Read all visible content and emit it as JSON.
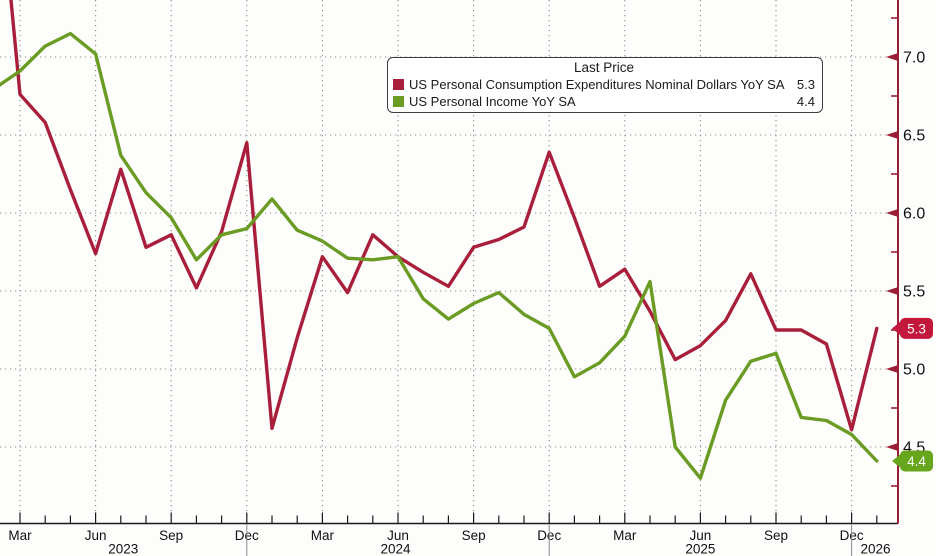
{
  "window_title": "US Personal Consumption Expenditures vs Personal Income YoY chart",
  "chart_data": {
    "type": "line",
    "title": "Last Price",
    "grid": "dotted",
    "legend_position": "top-center",
    "legend": {
      "title": "Last Price",
      "items": [
        {
          "label": "US Personal Consumption Expenditures Nominal Dollars YoY SA",
          "value": "5.3",
          "color": "#a91f3b"
        },
        {
          "label": "US Personal Income YoY SA",
          "value": "4.4",
          "color": "#6a9b23"
        }
      ]
    },
    "x": [
      "2023-02",
      "2023-03",
      "2023-04",
      "2023-05",
      "2023-06",
      "2023-07",
      "2023-08",
      "2023-09",
      "2023-10",
      "2023-11",
      "2023-12",
      "2024-01",
      "2024-02",
      "2024-03",
      "2024-04",
      "2024-05",
      "2024-06",
      "2024-07",
      "2024-08",
      "2024-09",
      "2024-10",
      "2024-11",
      "2024-12",
      "2025-01",
      "2025-02",
      "2025-03",
      "2025-04",
      "2025-05",
      "2025-06",
      "2025-07",
      "2025-08",
      "2025-09",
      "2025-10",
      "2025-11",
      "2025-12",
      "2026-01"
    ],
    "series": [
      {
        "name": "US Personal Consumption Expenditures Nominal Dollars YoY SA",
        "color": "#a91f3b",
        "last_price": "5.3",
        "values": [
          8.45,
          6.76,
          6.58,
          6.15,
          5.74,
          6.28,
          5.78,
          5.86,
          5.52,
          5.88,
          6.45,
          4.62,
          5.2,
          5.72,
          5.49,
          5.86,
          5.72,
          5.62,
          5.53,
          5.78,
          5.83,
          5.91,
          6.39,
          5.97,
          5.53,
          5.64,
          5.37,
          5.06,
          5.15,
          5.31,
          5.61,
          5.25,
          5.25,
          5.16,
          4.61,
          5.26
        ]
      },
      {
        "name": "US Personal Income YoY SA",
        "color": "#6a9b23",
        "last_price": "4.4",
        "values": [
          6.8,
          6.91,
          7.07,
          7.15,
          7.02,
          6.37,
          6.13,
          5.97,
          5.7,
          5.86,
          5.9,
          6.09,
          5.89,
          5.82,
          5.71,
          5.7,
          5.72,
          5.45,
          5.32,
          5.42,
          5.49,
          5.35,
          5.26,
          4.95,
          5.04,
          5.21,
          5.56,
          4.5,
          4.3,
          4.8,
          5.05,
          5.1,
          4.69,
          4.67,
          4.58,
          4.41
        ]
      }
    ],
    "ylim": [
      4.01,
      7.37
    ],
    "y_ticks": [
      {
        "v": 7.0,
        "label": "7.0"
      },
      {
        "v": 6.5,
        "label": "6.5"
      },
      {
        "v": 6.0,
        "label": "6.0"
      },
      {
        "v": 5.5,
        "label": "5.5"
      },
      {
        "v": 5.0,
        "label": "5.0"
      },
      {
        "v": 4.5,
        "label": "4.5"
      }
    ],
    "y_minor_ticks": [
      7.25,
      6.75,
      6.25,
      5.75,
      5.25,
      4.75,
      4.25
    ],
    "x_tick_labels": [
      {
        "m": 2,
        "label": "Mar"
      },
      {
        "m": 5,
        "label": "Jun"
      },
      {
        "m": 8,
        "label": "Sep"
      },
      {
        "m": 11,
        "label": "Dec"
      },
      {
        "m": 14,
        "label": "Mar"
      },
      {
        "m": 17,
        "label": "Jun"
      },
      {
        "m": 20,
        "label": "Sep"
      },
      {
        "m": 23,
        "label": "Dec"
      },
      {
        "m": 26,
        "label": "Mar"
      },
      {
        "m": 29,
        "label": "Jun"
      },
      {
        "m": 32,
        "label": "Sep"
      },
      {
        "m": 35,
        "label": "Dec"
      }
    ],
    "year_labels": [
      {
        "label": "2023",
        "m": 6.1
      },
      {
        "label": "2024",
        "m": 16.9
      },
      {
        "label": "2025",
        "m": 29.0
      },
      {
        "label": "2026",
        "m": 35.95
      }
    ],
    "year_separators_m": [
      11,
      23,
      35
    ],
    "badges": [
      {
        "text": "5.3",
        "v": 5.26,
        "color": "#c3183c"
      },
      {
        "text": "4.4",
        "v": 4.41,
        "color": "#67a51d"
      }
    ],
    "axis_color": "#9a1f33",
    "grid_color": "#8f8f8f",
    "x_axis_color": "#1a1a1a",
    "text_color": "#111111"
  }
}
